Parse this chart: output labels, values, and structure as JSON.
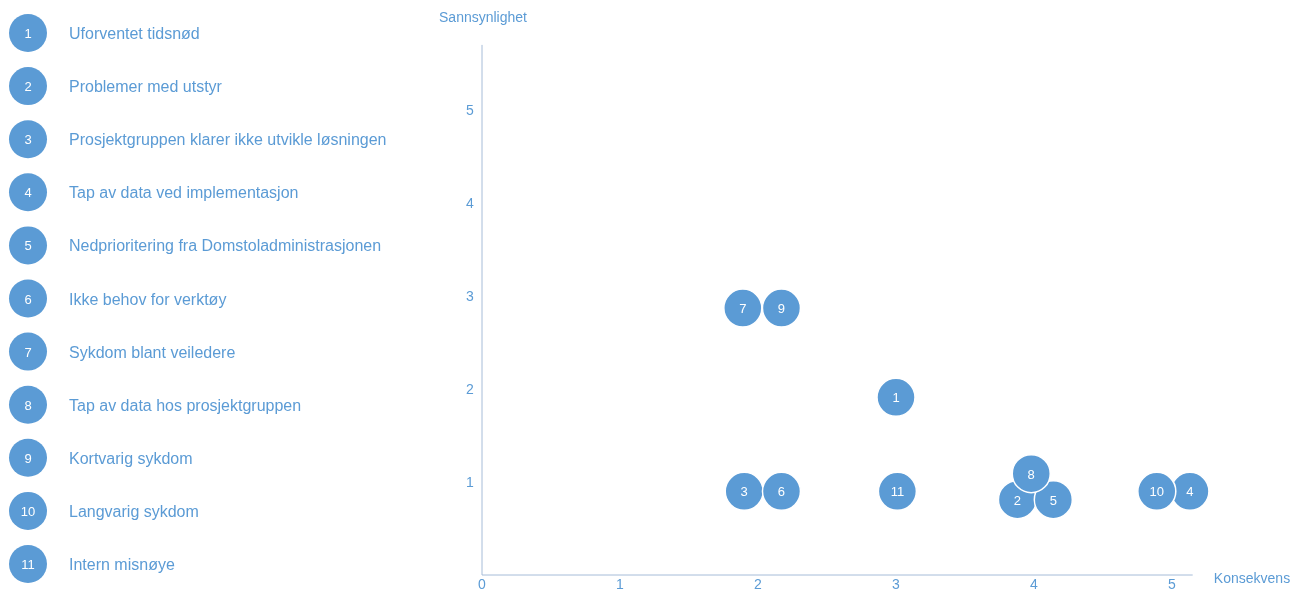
{
  "chart_data": {
    "type": "scatter",
    "xlabel": "Konsekvens",
    "ylabel": "Sannsynlighet",
    "xlim": [
      0,
      5.15
    ],
    "ylim": [
      0,
      5.7
    ],
    "xticks": [
      0,
      1,
      2,
      3,
      4,
      5
    ],
    "yticks": [
      1,
      2,
      3,
      4,
      5
    ],
    "grid": false,
    "legend": "left",
    "marker": "circle",
    "series": [
      {
        "name": "Uforventet tidsnød",
        "color": "#5b9bd5",
        "x": [
          3.0
        ],
        "values": [
          1.91
        ]
      },
      {
        "name": "Problemer med utstyr",
        "color": "#5b9bd5",
        "x": [
          3.88
        ],
        "values": [
          0.81
        ]
      },
      {
        "name": "Prosjektgruppen klarer ikke utvikle løsningen",
        "color": "#5b9bd5",
        "x": [
          1.9
        ],
        "values": [
          0.9
        ]
      },
      {
        "name": "Tap av data ved implementasjon",
        "color": "#5b9bd5",
        "x": [
          5.13
        ],
        "values": [
          0.9
        ]
      },
      {
        "name": "Nedprioritering fra Domstoladministrasjonen",
        "color": "#5b9bd5",
        "x": [
          4.14
        ],
        "values": [
          0.81
        ]
      },
      {
        "name": "Ikke behov for verktøy",
        "color": "#5b9bd5",
        "x": [
          2.17
        ],
        "values": [
          0.9
        ]
      },
      {
        "name": "Sykdom blant veiledere",
        "color": "#5b9bd5",
        "x": [
          1.89
        ],
        "values": [
          2.87
        ]
      },
      {
        "name": "Tap av data hos prosjektgruppen",
        "color": "#5b9bd5",
        "x": [
          3.98
        ],
        "values": [
          1.09
        ]
      },
      {
        "name": "Kortvarig sykdom",
        "color": "#5b9bd5",
        "x": [
          2.17
        ],
        "values": [
          2.87
        ]
      },
      {
        "name": "Langvarig sykdom",
        "color": "#5b9bd5",
        "x": [
          4.89
        ],
        "values": [
          0.9
        ]
      },
      {
        "name": "Intern misnøye",
        "color": "#5b9bd5",
        "x": [
          3.01
        ],
        "values": [
          0.9
        ]
      }
    ],
    "annotations": [
      {
        "text": "1",
        "x": 3.0,
        "y": 1.91
      },
      {
        "text": "2",
        "x": 3.88,
        "y": 0.81
      },
      {
        "text": "3",
        "x": 1.9,
        "y": 0.9
      },
      {
        "text": "4",
        "x": 5.13,
        "y": 0.9
      },
      {
        "text": "5",
        "x": 4.14,
        "y": 0.81
      },
      {
        "text": "6",
        "x": 2.17,
        "y": 0.9
      },
      {
        "text": "7",
        "x": 1.89,
        "y": 2.87
      },
      {
        "text": "8",
        "x": 3.98,
        "y": 1.09
      },
      {
        "text": "9",
        "x": 2.17,
        "y": 2.87
      },
      {
        "text": "10",
        "x": 4.89,
        "y": 0.9
      },
      {
        "text": "11",
        "x": 3.01,
        "y": 0.9
      }
    ]
  }
}
